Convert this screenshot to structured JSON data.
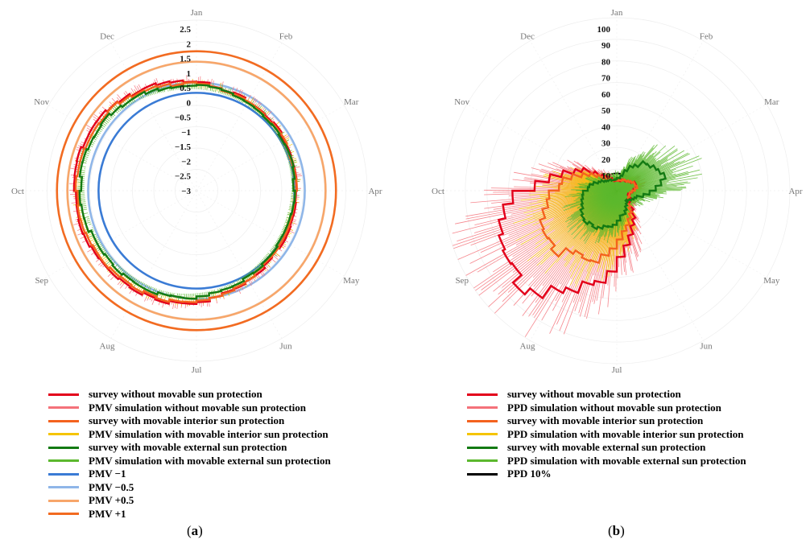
{
  "chart_data": [
    {
      "panel_label": "a",
      "type": "radial-line",
      "angular_axis": [
        "Jan",
        "Feb",
        "Mar",
        "Apr",
        "May",
        "Jun",
        "Jul",
        "Aug",
        "Sep",
        "Oct",
        "Nov",
        "Dec"
      ],
      "radial_ticks": [
        "2.5",
        "2",
        "1.5",
        "1",
        "0.5",
        "0",
        "−0.5",
        "−1",
        "−1.5",
        "−2",
        "−2.5",
        "−3"
      ],
      "radial_range": [
        -3,
        2.5
      ],
      "reference_circles": [
        {
          "name": "PMV −1",
          "value": -1,
          "color": "#3a7bd5"
        },
        {
          "name": "PMV −0.5",
          "value": -0.5,
          "color": "#8fb6e8"
        },
        {
          "name": "PMV +0.5",
          "value": 0.5,
          "color": "#f7a66a"
        },
        {
          "name": "PMV +1",
          "value": 1,
          "color": "#f26b21"
        }
      ],
      "series": [
        {
          "name": "survey without movable sun protection",
          "color": "#e3001b",
          "style": "step",
          "values": [
            -0.65,
            -0.75,
            -0.85,
            -0.95,
            -0.85,
            -0.55,
            -0.15,
            -0.05,
            0.1,
            0.2,
            0.05,
            -0.35
          ]
        },
        {
          "name": "PMV simulation without movable sun protection",
          "color": "#f4727a",
          "style": "spikes",
          "values": [
            -0.6,
            -0.75,
            -0.85,
            -0.9,
            -0.8,
            -0.5,
            -0.1,
            0.0,
            0.15,
            0.25,
            0.1,
            -0.3
          ]
        },
        {
          "name": "survey with movable interior sun protection",
          "color": "#f4621e",
          "style": "step",
          "values": [
            -0.7,
            -0.8,
            -0.9,
            -1.0,
            -0.9,
            -0.6,
            -0.25,
            -0.15,
            0.0,
            0.1,
            -0.05,
            -0.45
          ]
        },
        {
          "name": "PMV simulation with movable interior sun protection",
          "color": "#f5c400",
          "style": "spikes",
          "values": [
            -0.7,
            -0.8,
            -0.9,
            -1.0,
            -0.9,
            -0.65,
            -0.3,
            -0.2,
            -0.05,
            0.05,
            -0.1,
            -0.5
          ]
        },
        {
          "name": "survey with movable external sun protection",
          "color": "#137a13",
          "style": "step",
          "values": [
            -0.75,
            -0.85,
            -0.95,
            -1.05,
            -1.0,
            -0.75,
            -0.45,
            -0.35,
            -0.2,
            -0.05,
            -0.2,
            -0.55
          ]
        },
        {
          "name": "PMV simulation with movable external sun protection",
          "color": "#5cb82e",
          "style": "spikes",
          "values": [
            -0.75,
            -0.85,
            -0.95,
            -1.05,
            -1.0,
            -0.75,
            -0.5,
            -0.4,
            -0.25,
            -0.1,
            -0.25,
            -0.6
          ]
        }
      ],
      "legend": [
        {
          "label": "survey without movable sun protection",
          "color": "#e3001b"
        },
        {
          "label": "PMV simulation without movable sun protection",
          "color": "#f4727a"
        },
        {
          "label": "survey with movable interior sun protection",
          "color": "#f4621e"
        },
        {
          "label": "PMV simulation with movable interior sun protection",
          "color": "#f5c400"
        },
        {
          "label": "survey with movable external sun protection",
          "color": "#137a13"
        },
        {
          "label": "PMV simulation with movable external sun protection",
          "color": "#5cb82e"
        },
        {
          "label": "PMV −1",
          "color": "#3a7bd5"
        },
        {
          "label": "PMV −0.5",
          "color": "#8fb6e8"
        },
        {
          "label": "PMV +0.5",
          "color": "#f7a66a"
        },
        {
          "label": "PMV +1",
          "color": "#f26b21"
        }
      ]
    },
    {
      "panel_label": "b",
      "type": "radial-line",
      "angular_axis": [
        "Jan",
        "Feb",
        "Mar",
        "Apr",
        "May",
        "Jun",
        "Jul",
        "Aug",
        "Sep",
        "Oct",
        "Nov",
        "Dec"
      ],
      "radial_ticks": [
        "100",
        "90",
        "80",
        "70",
        "60",
        "50",
        "40",
        "30",
        "20",
        "10"
      ],
      "radial_range": [
        0,
        100
      ],
      "reference_circles": [
        {
          "name": "PPD 10%",
          "value": 10,
          "color": "#000000"
        }
      ],
      "series": [
        {
          "name": "survey without movable sun protection",
          "color": "#e3001b",
          "style": "step",
          "values": [
            6,
            8,
            12,
            7,
            10,
            28,
            55,
            78,
            72,
            35,
            12,
            6
          ]
        },
        {
          "name": "PPD simulation without movable sun protection",
          "color": "#f4727a",
          "style": "spikes",
          "values": [
            6,
            10,
            14,
            8,
            12,
            32,
            60,
            82,
            76,
            38,
            14,
            7
          ]
        },
        {
          "name": "survey with movable interior sun protection",
          "color": "#f4621e",
          "style": "step",
          "values": [
            6,
            8,
            12,
            7,
            9,
            22,
            40,
            48,
            45,
            28,
            10,
            6
          ]
        },
        {
          "name": "PPD simulation with movable interior sun protection",
          "color": "#f5c400",
          "style": "spikes",
          "values": [
            6,
            9,
            13,
            8,
            10,
            24,
            42,
            50,
            46,
            30,
            11,
            6
          ]
        },
        {
          "name": "survey with movable external sun protection",
          "color": "#137a13",
          "style": "step",
          "values": [
            8,
            22,
            30,
            12,
            8,
            14,
            22,
            26,
            22,
            14,
            8,
            6
          ]
        },
        {
          "name": "PPD simulation with movable external sun protection",
          "color": "#5cb82e",
          "style": "spikes",
          "values": [
            10,
            30,
            40,
            16,
            10,
            16,
            24,
            28,
            24,
            16,
            10,
            8
          ]
        }
      ],
      "legend": [
        {
          "label": "survey without movable sun protection",
          "color": "#e3001b"
        },
        {
          "label": "PPD simulation without movable sun protection",
          "color": "#f4727a"
        },
        {
          "label": "survey with movable interior sun protection",
          "color": "#f4621e"
        },
        {
          "label": "PPD simulation with movable interior sun protection",
          "color": "#f5c400"
        },
        {
          "label": "survey with movable external sun protection",
          "color": "#137a13"
        },
        {
          "label": "PPD simulation with movable external sun protection",
          "color": "#5cb82e"
        },
        {
          "label": "PPD 10%",
          "color": "#000000"
        }
      ]
    }
  ]
}
